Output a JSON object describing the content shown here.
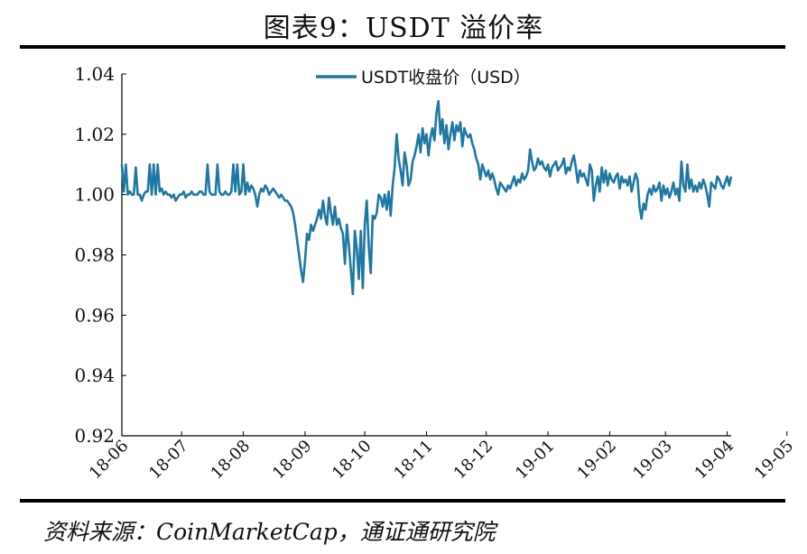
{
  "title": "图表9：USDT 溢价率",
  "source": "资料来源：CoinMarketCap，通证通研究院",
  "colors": {
    "series": "#1f77a4",
    "axis": "#000000"
  },
  "chart_data": {
    "type": "line",
    "xlabel": "",
    "ylabel": "",
    "ylim": [
      0.92,
      1.04
    ],
    "yticks": [
      "0.92",
      "0.94",
      "0.96",
      "0.98",
      "1.00",
      "1.02",
      "1.04"
    ],
    "xticks": [
      "18-06",
      "18-07",
      "18-08",
      "18-09",
      "18-10",
      "18-11",
      "18-12",
      "19-01",
      "19-02",
      "19-03",
      "19-04",
      "19-05"
    ],
    "legend": {
      "position": "top-center",
      "label": "USDT收盘价（USD）"
    },
    "grid": false,
    "series": [
      {
        "name": "USDT收盘价（USD）",
        "x_start": "2018-06-01",
        "values": [
          1.01,
          1.001,
          1.01,
          1.0,
          1.001,
          1.0,
          1.0,
          1.009,
          1.0,
          1.0,
          0.998,
          1.0,
          1.001,
          1.001,
          1.01,
          1.0,
          1.01,
          1.0,
          1.01,
          1.001,
          1.002,
          1.0,
          1.001,
          1.0,
          1.0,
          0.999,
          1.0,
          0.998,
          0.999,
          1.0,
          1.0,
          1.001,
          0.999,
          1.0,
          1.0,
          1.001,
          1.0,
          1.0,
          1.0,
          1.001,
          1.001,
          1.0,
          1.0,
          1.01,
          1.001,
          1.0,
          1.0,
          1.0,
          1.01,
          1.001,
          1.0,
          1.0,
          1.001,
          1.0,
          1.0,
          1.001,
          1.01,
          1.001,
          1.01,
          1.0,
          1.001,
          1.01,
          1.0,
          1.004,
          1.001,
          1.003,
          1.002,
          1.0,
          0.996,
          1.0,
          1.002,
          1.001,
          1.003,
          1.002,
          1.0,
          1.001,
          1.002,
          1.001,
          1.0,
          0.999,
          1.0,
          0.999,
          0.998,
          0.998,
          0.997,
          0.996,
          0.994,
          0.99,
          0.985,
          0.98,
          0.975,
          0.971,
          0.978,
          0.987,
          0.985,
          0.99,
          0.988,
          0.99,
          0.992,
          0.995,
          0.992,
          0.998,
          0.993,
          0.99,
          0.999,
          0.994,
          0.99,
          0.996,
          0.99,
          0.992,
          0.989,
          0.987,
          0.977,
          0.99,
          0.983,
          0.975,
          0.967,
          0.988,
          0.982,
          0.972,
          0.988,
          0.969,
          0.99,
          0.998,
          0.983,
          0.974,
          0.993,
          0.992,
          0.994,
          1.0,
          0.999,
          0.996,
          1.0,
          0.995,
          1.001,
          0.993,
          1.003,
          1.009,
          1.02,
          1.012,
          1.008,
          1.003,
          1.014,
          1.01,
          1.003,
          1.005,
          1.011,
          1.013,
          1.016,
          1.02,
          1.014,
          1.022,
          1.017,
          1.02,
          1.013,
          1.019,
          1.022,
          1.018,
          1.027,
          1.031,
          1.02,
          1.025,
          1.017,
          1.023,
          1.015,
          1.02,
          1.024,
          1.018,
          1.023,
          1.021,
          1.024,
          1.016,
          1.022,
          1.02,
          1.019,
          1.02,
          1.017,
          1.015,
          1.012,
          1.01,
          1.005,
          1.01,
          1.008,
          1.006,
          1.008,
          1.005,
          1.007,
          1.005,
          1.002,
          1.0,
          1.004,
          1.003,
          1.002,
          1.001,
          1.003,
          1.002,
          1.004,
          1.006,
          1.003,
          1.005,
          1.004,
          1.007,
          1.005,
          1.006,
          1.008,
          1.015,
          1.011,
          1.008,
          1.009,
          1.012,
          1.01,
          1.011,
          1.009,
          1.008,
          1.01,
          1.006,
          1.009,
          1.01,
          1.011,
          1.008,
          1.009,
          1.01,
          1.012,
          1.007,
          1.009,
          1.008,
          1.011,
          1.013,
          1.009,
          1.004,
          1.008,
          1.006,
          1.007,
          1.005,
          1.003,
          1.01,
          1.008,
          0.998,
          1.003,
          1.006,
          1.001,
          1.009,
          1.004,
          1.008,
          1.003,
          1.007,
          1.005,
          1.004,
          1.006,
          1.007,
          1.002,
          1.006,
          1.004,
          1.005,
          1.003,
          1.006,
          1.001,
          1.004,
          1.007,
          1.005,
          0.996,
          0.992,
          0.997,
          0.995,
          1.0,
          1.002,
          1.0,
          1.003,
          1.001,
          1.002,
          1.004,
          0.998,
          1.003,
          1.0,
          1.002,
          0.999,
          1.001,
          1.004,
          1.0,
          1.002,
          0.998,
          1.011,
          1.003,
          1.001,
          1.01,
          1.002,
          1.005,
          1.001,
          1.003,
          1.001,
          1.004,
          1.002,
          1.005,
          1.003,
          1.0,
          0.996,
          1.004,
          1.003,
          1.002,
          1.006,
          1.005,
          1.003,
          1.002,
          1.004,
          1.006,
          1.003,
          1.006
        ]
      }
    ]
  }
}
